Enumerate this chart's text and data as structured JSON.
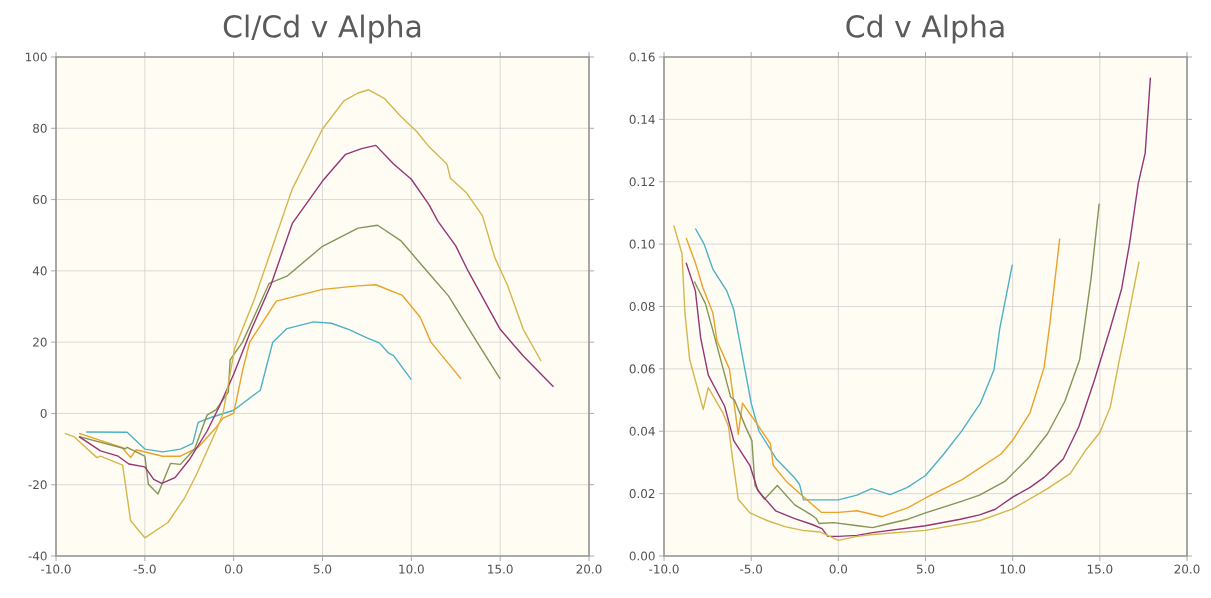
{
  "chart_data": [
    {
      "type": "line",
      "title": "Cl/Cd v Alpha",
      "xlim": [
        -10,
        20
      ],
      "ylim": [
        -40,
        100
      ],
      "xticks": [
        {
          "value": -10,
          "label": "-10.0"
        },
        {
          "value": -5,
          "label": "-5.0"
        },
        {
          "value": 0,
          "label": "0.0"
        },
        {
          "value": 5,
          "label": "5.0"
        },
        {
          "value": 10,
          "label": "10.0"
        },
        {
          "value": 15,
          "label": "15.0"
        },
        {
          "value": 20,
          "label": "20.0"
        }
      ],
      "yticks": [
        -40,
        -20,
        0,
        20,
        40,
        60,
        80,
        100
      ],
      "grid": true,
      "marker": "none",
      "line_style": "solid",
      "series": [
        {
          "color": "#4bb2c5",
          "x": [
            -8.3,
            -6.0,
            -5.0,
            -4.0,
            -3.0,
            -2.3,
            -2.0,
            -1.2,
            0.0,
            1.5,
            2.2,
            3.0,
            4.5,
            5.5,
            6.5,
            7.5,
            8.2,
            8.7,
            9.0,
            10.0
          ],
          "values": [
            -5.2,
            -5.3,
            -10,
            -10.8,
            -10,
            -8.4,
            -2.5,
            -1,
            0.9,
            6.5,
            20,
            23.8,
            25.7,
            25.3,
            23.5,
            21.2,
            19.8,
            17,
            16.2,
            9.5
          ]
        },
        {
          "color": "#eaa228",
          "x": [
            -8.7,
            -6.3,
            -5.8,
            -5.5,
            -4.0,
            -3.0,
            -2.0,
            -1.0,
            -0.6,
            0.0,
            0.5,
            0.9,
            2.4,
            5.0,
            7.0,
            8.0,
            9.5,
            10.5,
            11.1,
            12.8
          ],
          "values": [
            -5.6,
            -9.5,
            -12.4,
            -10.2,
            -12,
            -12,
            -9.5,
            -4,
            -1.3,
            0,
            12,
            20,
            31.5,
            34.8,
            35.8,
            36.1,
            33.1,
            27,
            20,
            9.7
          ]
        },
        {
          "color": "#839557",
          "x": [
            -8.7,
            -6.1,
            -6.0,
            -5.0,
            -4.8,
            -4.26,
            -3.55,
            -3.0,
            -2.2,
            -1.5,
            -1.0,
            -0.3,
            -0.2,
            0.5,
            2.0,
            3.0,
            5.0,
            7.0,
            8.1,
            9.4,
            10.8,
            12.1,
            13.7,
            15.0
          ],
          "values": [
            -6.5,
            -9.9,
            -9.5,
            -12,
            -19.9,
            -22.6,
            -14,
            -14.3,
            -10,
            -0.5,
            1,
            6,
            15,
            20,
            36.5,
            38.5,
            46.9,
            52,
            52.8,
            48.5,
            40.4,
            32.9,
            20,
            9.7
          ]
        },
        {
          "color": "#953579",
          "x": [
            -8.7,
            -7.5,
            -6.5,
            -5.9,
            -5.0,
            -4.5,
            -4.05,
            -3.3,
            -2.5,
            -1.5,
            -0.8,
            0.0,
            1.0,
            2.1,
            3.3,
            5.0,
            6.3,
            7.2,
            8.0,
            9.0,
            10.0,
            11.0,
            11.5,
            12.5,
            13.2,
            15.0,
            16.3,
            18.0
          ],
          "values": [
            -6.5,
            -10.5,
            -12,
            -14.2,
            -15,
            -18.5,
            -19.6,
            -18,
            -13,
            -5,
            2,
            11,
            23.6,
            36.1,
            53.3,
            65.2,
            72.7,
            74.3,
            75.2,
            70,
            65.7,
            58.5,
            53.9,
            47,
            39.9,
            23.6,
            16.1,
            7.5
          ]
        },
        {
          "color": "#d4b64c",
          "x": [
            -9.5,
            -9.0,
            -7.7,
            -7.5,
            -6.25,
            -5.8,
            -5.0,
            -3.7,
            -2.75,
            -2.1,
            -1.0,
            -0.6,
            0.06,
            1.15,
            3.3,
            5.0,
            6.2,
            7.0,
            7.6,
            8.5,
            9.4,
            10.3,
            11.0,
            12.0,
            12.2,
            13.1,
            14.0,
            14.7,
            15.4,
            16.3,
            17.3
          ],
          "values": [
            -5.6,
            -6.5,
            -12.4,
            -12,
            -14.5,
            -30.1,
            -34.9,
            -30.6,
            -23.6,
            -17.2,
            -5,
            0,
            18.3,
            31.8,
            63,
            79.8,
            87.7,
            89.9,
            90.8,
            88.3,
            83.4,
            79.1,
            74.8,
            70,
            66,
            61.9,
            55.5,
            43.7,
            36.1,
            23.6,
            14.7
          ]
        }
      ]
    },
    {
      "type": "line",
      "title": "Cd v Alpha",
      "xlim": [
        -10,
        20
      ],
      "ylim": [
        0,
        0.16
      ],
      "xticks": [
        {
          "value": -10,
          "label": "-10.0"
        },
        {
          "value": -5,
          "label": "-5.0"
        },
        {
          "value": 0,
          "label": "0.0"
        },
        {
          "value": 5,
          "label": "5.0"
        },
        {
          "value": 10,
          "label": "10.0"
        },
        {
          "value": 15,
          "label": "15.0"
        },
        {
          "value": 20,
          "label": "20.0"
        }
      ],
      "yticks": [
        {
          "value": 0,
          "label": "0.00"
        },
        {
          "value": 0.02,
          "label": "0.02"
        },
        {
          "value": 0.04,
          "label": "0.04"
        },
        {
          "value": 0.06,
          "label": "0.06"
        },
        {
          "value": 0.08,
          "label": "0.08"
        },
        {
          "value": 0.1,
          "label": "0.10"
        },
        {
          "value": 0.12,
          "label": "0.12"
        },
        {
          "value": 0.14,
          "label": "0.14"
        },
        {
          "value": 0.16,
          "label": "0.16"
        }
      ],
      "grid": true,
      "marker": "none",
      "line_style": "solid",
      "series": [
        {
          "color": "#4bb2c5",
          "x": [
            -8.2,
            -7.7,
            -7.2,
            -6.4,
            -6.0,
            -5.7,
            -5.0,
            -4.55,
            -3.54,
            -2.5,
            -2.23,
            -2.0,
            0.0,
            1.07,
            1.9,
            2.97,
            3.97,
            5.0,
            6.05,
            7.05,
            8.15,
            8.93,
            9.26,
            9.98
          ],
          "values": [
            0.105,
            0.1,
            0.092,
            0.085,
            0.079,
            0.07,
            0.049,
            0.04,
            0.031,
            0.025,
            0.023,
            0.018,
            0.018,
            0.0195,
            0.0216,
            0.0197,
            0.022,
            0.0258,
            0.0327,
            0.0399,
            0.049,
            0.0597,
            0.073,
            0.0934
          ]
        },
        {
          "color": "#eaa228",
          "x": [
            -8.73,
            -8.2,
            -7.77,
            -7.2,
            -6.96,
            -6.25,
            -5.74,
            -5.5,
            -4.5,
            -3.9,
            -3.73,
            -3.0,
            -2.0,
            -0.98,
            0.0,
            1.07,
            2.52,
            4.0,
            5.0,
            7.1,
            9.33,
            10.0,
            11.0,
            11.8,
            12.1,
            12.7
          ],
          "values": [
            0.102,
            0.094,
            0.086,
            0.078,
            0.069,
            0.06,
            0.039,
            0.049,
            0.041,
            0.036,
            0.029,
            0.024,
            0.019,
            0.014,
            0.014,
            0.0145,
            0.0126,
            0.0155,
            0.0186,
            0.0245,
            0.0327,
            0.0371,
            0.046,
            0.0604,
            0.073,
            0.1018
          ]
        },
        {
          "color": "#839557",
          "x": [
            -8.26,
            -7.63,
            -7.23,
            -6.18,
            -5.96,
            -5.29,
            -4.96,
            -4.78,
            -4.24,
            -3.5,
            -2.5,
            -1.5,
            -1.27,
            -1.1,
            -0.27,
            1.0,
            1.96,
            3.0,
            4.0,
            5.0,
            7.1,
            8.1,
            9.55,
            10.9,
            12.0,
            13.0,
            13.84,
            14.1,
            14.5,
            14.96
          ],
          "values": [
            0.088,
            0.081,
            0.073,
            0.051,
            0.05,
            0.041,
            0.037,
            0.0226,
            0.0182,
            0.0226,
            0.0164,
            0.013,
            0.012,
            0.0104,
            0.0107,
            0.0098,
            0.0091,
            0.0105,
            0.0118,
            0.0138,
            0.0176,
            0.0195,
            0.0239,
            0.0314,
            0.0392,
            0.0497,
            0.0629,
            0.073,
            0.0892,
            0.113
          ]
        },
        {
          "color": "#953579",
          "x": [
            -8.73,
            -8.2,
            -7.9,
            -7.46,
            -6.52,
            -6.0,
            -5.07,
            -4.62,
            -3.6,
            -2.5,
            -1.5,
            -0.94,
            -0.6,
            0.0,
            1.07,
            1.96,
            5.0,
            7.0,
            8.1,
            9.0,
            10.0,
            11.0,
            11.8,
            12.9,
            13.8,
            14.7,
            15.6,
            16.25,
            16.7,
            17.2,
            17.6,
            17.9
          ],
          "values": [
            0.094,
            0.085,
            0.07,
            0.058,
            0.048,
            0.037,
            0.029,
            0.021,
            0.0145,
            0.012,
            0.0101,
            0.0088,
            0.0063,
            0.0063,
            0.0066,
            0.0075,
            0.0097,
            0.0118,
            0.0132,
            0.015,
            0.0189,
            0.022,
            0.0252,
            0.0311,
            0.0415,
            0.0566,
            0.073,
            0.0857,
            0.1,
            0.1193,
            0.1292,
            0.1534
          ]
        },
        {
          "color": "#d4b64c",
          "x": [
            -9.44,
            -8.97,
            -8.8,
            -8.53,
            -7.75,
            -7.46,
            -6.63,
            -6.3,
            -6.07,
            -5.74,
            -5.07,
            -4.06,
            -3.06,
            -2.05,
            -1.05,
            0.0,
            1.07,
            1.96,
            5.0,
            8.1,
            10.0,
            12.0,
            13.3,
            14.2,
            15.0,
            15.6,
            16.1,
            16.5,
            17.25
          ],
          "values": [
            0.106,
            0.097,
            0.078,
            0.063,
            0.047,
            0.054,
            0.046,
            0.0415,
            0.0314,
            0.0182,
            0.0138,
            0.0113,
            0.0094,
            0.0082,
            0.0077,
            0.005,
            0.0063,
            0.0069,
            0.0082,
            0.0113,
            0.0151,
            0.0216,
            0.0264,
            0.034,
            0.0396,
            0.0478,
            0.0623,
            0.073,
            0.0944
          ]
        }
      ]
    }
  ]
}
